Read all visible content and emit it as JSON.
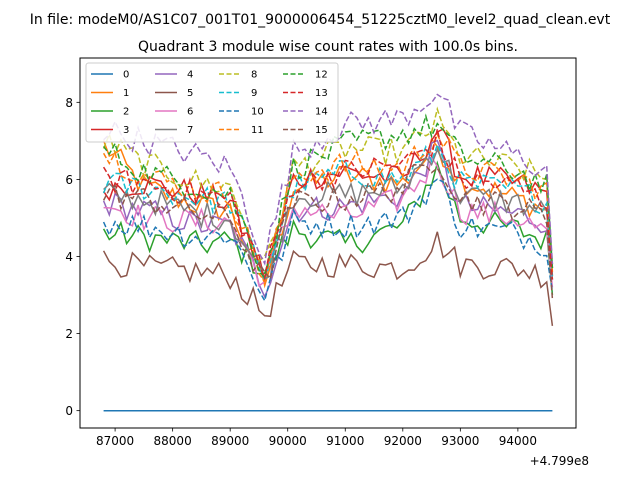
{
  "chart_data": {
    "type": "line",
    "suptitle": "In file: modeM0/AS1C07_001T01_9000006454_51225cztM0_level2_quad_clean.evt",
    "title": "Quadrant 3 module wise count rates with 100.0s bins.",
    "xlabel": "",
    "ylabel": "",
    "x_offset_label": "+4.799e8",
    "x_range": [
      86800,
      94600
    ],
    "x_step": 100,
    "xlim": [
      86390,
      95010
    ],
    "ylim": [
      -0.45,
      9.15
    ],
    "xticks": [
      87000,
      88000,
      89000,
      90000,
      91000,
      92000,
      93000,
      94000
    ],
    "yticks": [
      0,
      2,
      4,
      6,
      8
    ],
    "legend_position": "top-left",
    "legend_columns": 4,
    "series": [
      {
        "name": "0",
        "color": "#1f77b4",
        "dash": "solid",
        "profile": [
          [
            86800,
            0
          ],
          [
            94600,
            0
          ]
        ]
      },
      {
        "name": "1",
        "color": "#ff7f0e",
        "dash": "solid",
        "profile": [
          [
            86800,
            6.9
          ],
          [
            87500,
            5.8
          ],
          [
            88500,
            5.3
          ],
          [
            89000,
            5.2
          ],
          [
            89600,
            3.3
          ],
          [
            90100,
            5.8
          ],
          [
            91000,
            6.1
          ],
          [
            92000,
            5.9
          ],
          [
            92600,
            6.9
          ],
          [
            93000,
            6.0
          ],
          [
            94000,
            5.5
          ],
          [
            94500,
            5.2
          ],
          [
            94600,
            3.5
          ]
        ]
      },
      {
        "name": "2",
        "color": "#2ca02c",
        "dash": "solid",
        "profile": [
          [
            86800,
            4.6
          ],
          [
            87500,
            4.5
          ],
          [
            88500,
            4.3
          ],
          [
            89000,
            4.4
          ],
          [
            89600,
            3.6
          ],
          [
            90100,
            4.7
          ],
          [
            91000,
            4.3
          ],
          [
            92000,
            4.8
          ],
          [
            92600,
            6.3
          ],
          [
            93000,
            5.0
          ],
          [
            94000,
            4.7
          ],
          [
            94500,
            4.4
          ],
          [
            94600,
            3.0
          ]
        ]
      },
      {
        "name": "3",
        "color": "#d62728",
        "dash": "solid",
        "profile": [
          [
            86800,
            5.8
          ],
          [
            87500,
            5.9
          ],
          [
            88500,
            5.6
          ],
          [
            89000,
            5.4
          ],
          [
            89600,
            3.5
          ],
          [
            90100,
            6.0
          ],
          [
            91000,
            6.2
          ],
          [
            92000,
            6.0
          ],
          [
            92600,
            7.3
          ],
          [
            93000,
            6.1
          ],
          [
            94000,
            5.9
          ],
          [
            94500,
            5.6
          ],
          [
            94600,
            3.7
          ]
        ]
      },
      {
        "name": "4",
        "color": "#9467bd",
        "dash": "solid",
        "profile": [
          [
            86800,
            5.4
          ],
          [
            87500,
            5.2
          ],
          [
            88500,
            4.8
          ],
          [
            89000,
            4.8
          ],
          [
            89600,
            3.2
          ],
          [
            90100,
            5.2
          ],
          [
            91000,
            5.3
          ],
          [
            92000,
            5.6
          ],
          [
            92600,
            6.8
          ],
          [
            93000,
            5.3
          ],
          [
            94000,
            5.1
          ],
          [
            94500,
            4.9
          ],
          [
            94600,
            3.4
          ]
        ]
      },
      {
        "name": "5",
        "color": "#8c564b",
        "dash": "solid",
        "profile": [
          [
            86800,
            3.9
          ],
          [
            87500,
            3.7
          ],
          [
            88500,
            3.6
          ],
          [
            89000,
            3.5
          ],
          [
            89600,
            2.5
          ],
          [
            90100,
            3.8
          ],
          [
            91000,
            3.8
          ],
          [
            92000,
            3.7
          ],
          [
            92600,
            4.4
          ],
          [
            93000,
            3.8
          ],
          [
            94000,
            3.7
          ],
          [
            94500,
            3.5
          ],
          [
            94600,
            2.2
          ]
        ]
      },
      {
        "name": "6",
        "color": "#e377c2",
        "dash": "solid",
        "profile": [
          [
            86800,
            5.4
          ],
          [
            87500,
            5.0
          ],
          [
            88500,
            4.9
          ],
          [
            89000,
            4.9
          ],
          [
            89600,
            3.3
          ],
          [
            90100,
            5.3
          ],
          [
            91000,
            5.0
          ],
          [
            92000,
            5.5
          ],
          [
            92600,
            6.5
          ],
          [
            93000,
            5.2
          ],
          [
            94000,
            5.0
          ],
          [
            94500,
            4.6
          ],
          [
            94600,
            3.2
          ]
        ]
      },
      {
        "name": "7",
        "color": "#7f7f7f",
        "dash": "solid",
        "profile": [
          [
            86800,
            5.6
          ],
          [
            87500,
            5.5
          ],
          [
            88500,
            5.1
          ],
          [
            89000,
            5.0
          ],
          [
            89600,
            3.4
          ],
          [
            90100,
            5.6
          ],
          [
            91000,
            5.6
          ],
          [
            92000,
            5.8
          ],
          [
            92600,
            6.9
          ],
          [
            93000,
            5.6
          ],
          [
            94000,
            5.4
          ],
          [
            94500,
            5.1
          ],
          [
            94600,
            3.4
          ]
        ]
      },
      {
        "name": "8",
        "color": "#bcbd22",
        "dash": "dashed",
        "profile": [
          [
            86800,
            7.0
          ],
          [
            87500,
            6.4
          ],
          [
            88500,
            5.9
          ],
          [
            89000,
            5.8
          ],
          [
            89600,
            3.7
          ],
          [
            90100,
            6.3
          ],
          [
            91000,
            6.8
          ],
          [
            92000,
            6.7
          ],
          [
            92600,
            7.5
          ],
          [
            93000,
            6.6
          ],
          [
            94000,
            6.3
          ],
          [
            94500,
            6.0
          ],
          [
            94600,
            3.8
          ]
        ]
      },
      {
        "name": "9",
        "color": "#17becf",
        "dash": "dashed",
        "profile": [
          [
            86800,
            5.9
          ],
          [
            87500,
            5.8
          ],
          [
            88500,
            5.5
          ],
          [
            89000,
            5.4
          ],
          [
            89600,
            3.5
          ],
          [
            90100,
            5.8
          ],
          [
            91000,
            6.2
          ],
          [
            92000,
            6.0
          ],
          [
            92600,
            6.8
          ],
          [
            93000,
            5.9
          ],
          [
            94000,
            5.7
          ],
          [
            94500,
            5.4
          ],
          [
            94600,
            3.5
          ]
        ]
      },
      {
        "name": "10",
        "color": "#1f77b4",
        "dash": "dashed",
        "profile": [
          [
            86800,
            4.9
          ],
          [
            87500,
            4.8
          ],
          [
            88500,
            4.5
          ],
          [
            89000,
            4.6
          ],
          [
            89600,
            3.0
          ],
          [
            90100,
            4.9
          ],
          [
            91000,
            4.8
          ],
          [
            92000,
            5.0
          ],
          [
            92600,
            6.0
          ],
          [
            93000,
            4.8
          ],
          [
            94000,
            4.6
          ],
          [
            94500,
            4.3
          ],
          [
            94600,
            3.1
          ]
        ]
      },
      {
        "name": "11",
        "color": "#ff7f0e",
        "dash": "dashed",
        "profile": [
          [
            86800,
            6.7
          ],
          [
            87500,
            6.1
          ],
          [
            88500,
            5.7
          ],
          [
            89000,
            5.6
          ],
          [
            89600,
            3.4
          ],
          [
            90100,
            6.1
          ],
          [
            91000,
            6.4
          ],
          [
            92000,
            6.3
          ],
          [
            92600,
            7.2
          ],
          [
            93000,
            6.3
          ],
          [
            94000,
            6.0
          ],
          [
            94500,
            5.7
          ],
          [
            94600,
            3.6
          ]
        ]
      },
      {
        "name": "12",
        "color": "#2ca02c",
        "dash": "dashed",
        "profile": [
          [
            86800,
            6.8
          ],
          [
            87500,
            6.2
          ],
          [
            88500,
            5.8
          ],
          [
            89000,
            5.6
          ],
          [
            89600,
            3.6
          ],
          [
            90100,
            6.3
          ],
          [
            91000,
            6.9
          ],
          [
            92000,
            7.2
          ],
          [
            92600,
            7.4
          ],
          [
            93000,
            6.6
          ],
          [
            94000,
            6.2
          ],
          [
            94500,
            5.8
          ],
          [
            94600,
            3.7
          ]
        ]
      },
      {
        "name": "13",
        "color": "#d62728",
        "dash": "dashed",
        "profile": [
          [
            86800,
            6.0
          ],
          [
            87500,
            5.9
          ],
          [
            88500,
            5.6
          ],
          [
            89000,
            5.5
          ],
          [
            89600,
            3.5
          ],
          [
            90100,
            5.9
          ],
          [
            91000,
            6.2
          ],
          [
            92000,
            6.4
          ],
          [
            92600,
            7.0
          ],
          [
            93000,
            6.0
          ],
          [
            94000,
            5.8
          ],
          [
            94500,
            5.4
          ],
          [
            94600,
            3.4
          ]
        ]
      },
      {
        "name": "14",
        "color": "#9467bd",
        "dash": "dashed",
        "profile": [
          [
            86800,
            7.3
          ],
          [
            87500,
            7.0
          ],
          [
            88500,
            6.6
          ],
          [
            89000,
            6.3
          ],
          [
            89600,
            4.0
          ],
          [
            90100,
            6.7
          ],
          [
            91000,
            7.4
          ],
          [
            92000,
            7.6
          ],
          [
            92600,
            8.3
          ],
          [
            93000,
            7.2
          ],
          [
            94000,
            6.6
          ],
          [
            94500,
            6.2
          ],
          [
            94600,
            3.8
          ]
        ]
      },
      {
        "name": "15",
        "color": "#8c564b",
        "dash": "dashed",
        "profile": [
          [
            86800,
            5.6
          ],
          [
            87500,
            5.5
          ],
          [
            88500,
            5.1
          ],
          [
            89000,
            5.0
          ],
          [
            89600,
            3.3
          ],
          [
            90100,
            5.4
          ],
          [
            91000,
            5.5
          ],
          [
            92000,
            5.8
          ],
          [
            92600,
            6.6
          ],
          [
            93000,
            5.5
          ],
          [
            94000,
            5.3
          ],
          [
            94500,
            5.0
          ],
          [
            94600,
            2.9
          ]
        ]
      }
    ]
  }
}
